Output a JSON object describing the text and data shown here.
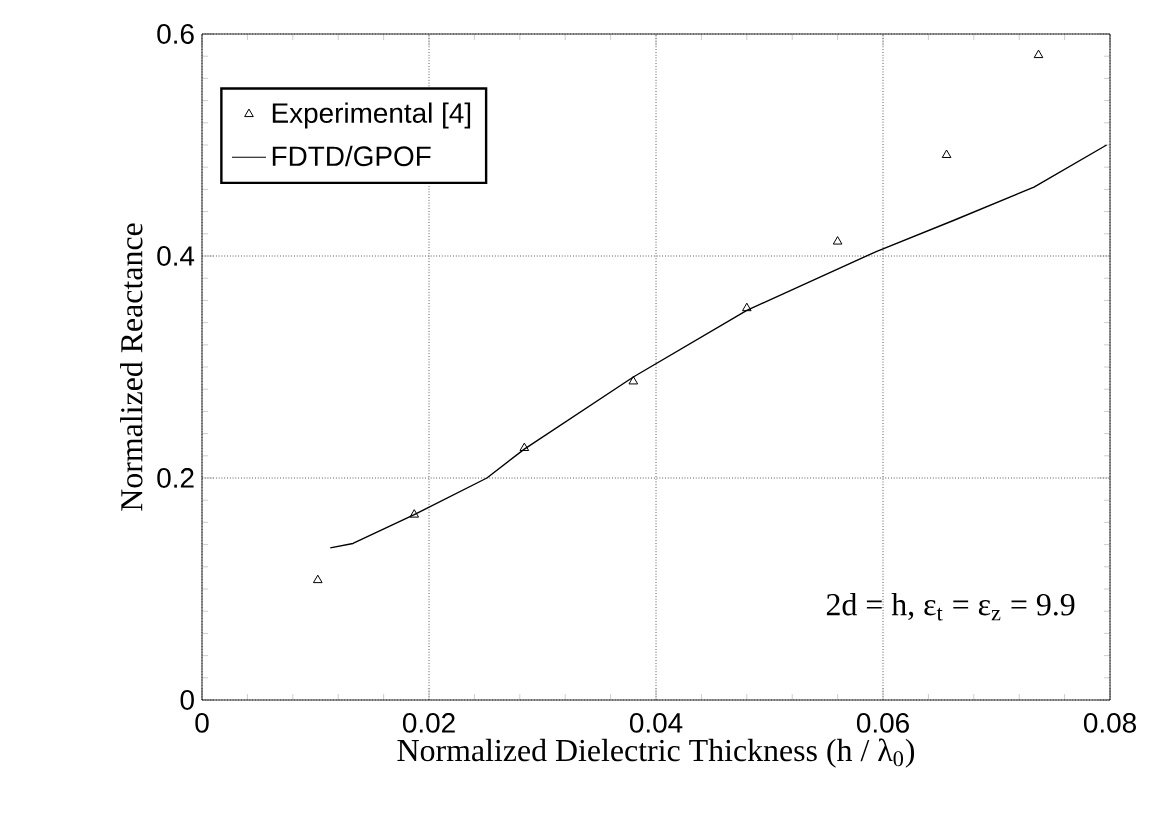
{
  "chart_data": {
    "type": "scatter",
    "xlabel": "Normalized Dielectric Thickness (h / λ$_{0}$)",
    "ylabel": "Normalized Reactance",
    "xlim": [
      0,
      0.08
    ],
    "xticks": [
      0,
      0.02,
      0.04,
      0.06,
      0.08
    ],
    "ylim": [
      0,
      0.6
    ],
    "yticks": [
      0,
      0.2,
      0.4,
      0.6
    ],
    "grid": true,
    "legend": "top left",
    "annotations": [
      "2d = h, ε$_{t}$ = ε$_{z}$ = 9.9"
    ],
    "series": [
      {
        "name": "Experimental [4]",
        "marker": "triangle",
        "color": "#000000",
        "x": [
          0.0102,
          0.0187,
          0.0284,
          0.038,
          0.048,
          0.056,
          0.0656,
          0.0737
        ],
        "values": [
          0.108,
          0.167,
          0.227,
          0.287,
          0.353,
          0.413,
          0.491,
          0.581
        ]
      },
      {
        "name": "FDTD/GPOF",
        "type": "line",
        "marker": "none",
        "line_style": "solid",
        "color": "#000000",
        "x": [
          0.0113,
          0.0133,
          0.0187,
          0.0251,
          0.0284,
          0.038,
          0.048,
          0.0594,
          0.0662,
          0.0733,
          0.0797
        ],
        "values": [
          0.137,
          0.141,
          0.167,
          0.2,
          0.226,
          0.291,
          0.351,
          0.404,
          0.432,
          0.462,
          0.5
        ]
      }
    ]
  }
}
